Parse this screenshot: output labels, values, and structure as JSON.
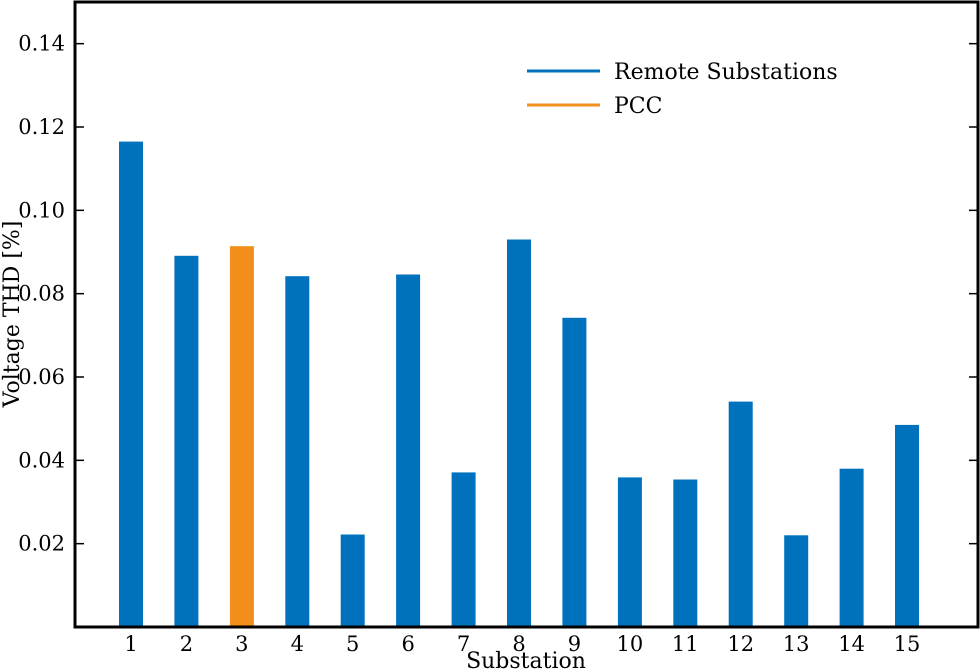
{
  "chart_data": {
    "type": "bar",
    "xlabel": "Substation",
    "ylabel": "Voltage THD [%]",
    "categories": [
      "1",
      "2",
      "3",
      "4",
      "5",
      "6",
      "7",
      "8",
      "9",
      "10",
      "11",
      "12",
      "13",
      "14",
      "15"
    ],
    "values": [
      0.1165,
      0.0891,
      0.0914,
      0.0842,
      0.0222,
      0.0846,
      0.0371,
      0.093,
      0.0742,
      0.0359,
      0.0354,
      0.0541,
      0.022,
      0.038,
      0.0485
    ],
    "bar_groups": [
      "Remote Substations",
      "Remote Substations",
      "PCC",
      "Remote Substations",
      "Remote Substations",
      "Remote Substations",
      "Remote Substations",
      "Remote Substations",
      "Remote Substations",
      "Remote Substations",
      "Remote Substations",
      "Remote Substations",
      "Remote Substations",
      "Remote Substations",
      "Remote Substations"
    ],
    "ylim": [
      0,
      0.15
    ],
    "yticks": [
      "0.02",
      "0.04",
      "0.06",
      "0.08",
      "0.10",
      "0.12",
      "0.14"
    ],
    "ytick_values": [
      0.02,
      0.04,
      0.06,
      0.08,
      0.1,
      0.12,
      0.14
    ],
    "legend": {
      "position": "top-right",
      "entries": [
        {
          "label": "Remote Substations",
          "color": "#0072bd"
        },
        {
          "label": "PCC",
          "color": "#f28e1c"
        }
      ]
    },
    "grid": false
  }
}
